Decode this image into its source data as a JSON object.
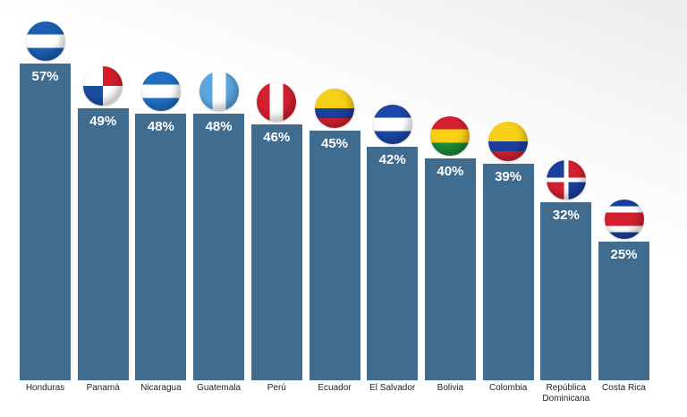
{
  "chart_data": {
    "type": "bar",
    "categories": [
      "Honduras",
      "Panamá",
      "Nicaragua",
      "Guatemala",
      "Perú",
      "Ecuador",
      "El Salvador",
      "Bolivia",
      "Colombia",
      "República Dominicana",
      "Costa Rica"
    ],
    "values": [
      57,
      49,
      48,
      48,
      46,
      45,
      42,
      40,
      39,
      32,
      25
    ],
    "value_labels": [
      "57%",
      "49%",
      "48%",
      "48%",
      "46%",
      "45%",
      "42%",
      "40%",
      "39%",
      "32%",
      "25%"
    ],
    "color": "#3f6c8f"
  }
}
